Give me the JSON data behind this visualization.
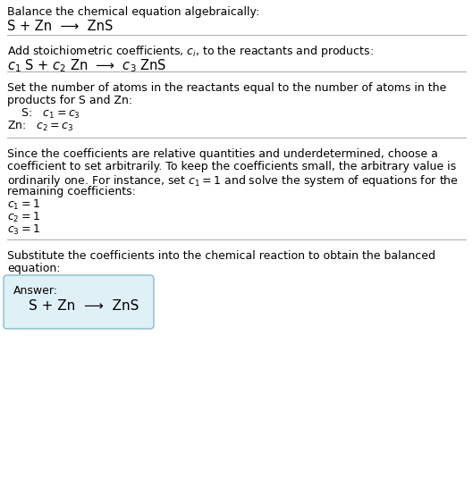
{
  "bg_color": "#ffffff",
  "line_color": "#aaaaaa",
  "box_fill": "#dff0f7",
  "box_edge": "#88bbcc",
  "title_text": "Balance the chemical equation algebraically:",
  "eq1": "S + Zn  ⟶  ZnS",
  "section2_intro": "Add stoichiometric coefficients, $c_i$, to the reactants and products:",
  "eq2": "$c_1$ S + $c_2$ Zn  ⟶  $c_3$ ZnS",
  "section3_line1": "Set the number of atoms in the reactants equal to the number of atoms in the",
  "section3_line2": "products for S and Zn:",
  "s_eq": "   S:   $c_1 = c_3$",
  "zn_eq": "Zn:   $c_2 = c_3$",
  "section4_line1": "Since the coefficients are relative quantities and underdetermined, choose a",
  "section4_line2": "coefficient to set arbitrarily. To keep the coefficients small, the arbitrary value is",
  "section4_line3": "ordinarily one. For instance, set $c_1 = 1$ and solve the system of equations for the",
  "section4_line4": "remaining coefficients:",
  "coeff1": "$c_1 = 1$",
  "coeff2": "$c_2 = 1$",
  "coeff3": "$c_3 = 1$",
  "section5_line1": "Substitute the coefficients into the chemical reaction to obtain the balanced",
  "section5_line2": "equation:",
  "answer_label": "Answer:",
  "answer_eq": "S + Zn  ⟶  ZnS",
  "fs": 9.0,
  "fs_eq": 10.5,
  "fs_ans": 11.0
}
